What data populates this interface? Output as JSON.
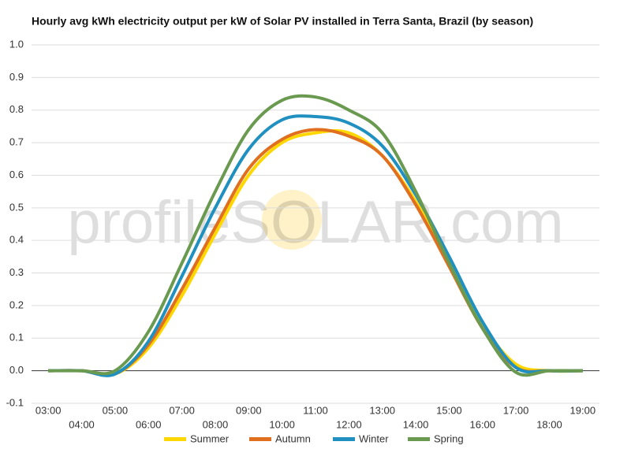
{
  "chart_data": {
    "type": "line",
    "title": "Hourly avg kWh electricity output per kW of Solar PV installed in Terra Santa, Brazil (by season)",
    "watermark": "profileSOLAR.com",
    "categories": [
      "03:00",
      "04:00",
      "05:00",
      "06:00",
      "07:00",
      "08:00",
      "09:00",
      "10:00",
      "11:00",
      "12:00",
      "13:00",
      "14:00",
      "15:00",
      "16:00",
      "17:00",
      "18:00",
      "19:00"
    ],
    "series": [
      {
        "name": "Summer",
        "color": "#ffd700",
        "values": [
          0,
          0,
          -0.01,
          0.07,
          0.23,
          0.42,
          0.6,
          0.7,
          0.73,
          0.73,
          0.66,
          0.52,
          0.33,
          0.14,
          0.02,
          0,
          0
        ]
      },
      {
        "name": "Autumn",
        "color": "#e07020",
        "values": [
          0,
          0,
          -0.01,
          0.08,
          0.25,
          0.44,
          0.62,
          0.71,
          0.74,
          0.72,
          0.66,
          0.51,
          0.32,
          0.13,
          0.01,
          0,
          0
        ]
      },
      {
        "name": "Winter",
        "color": "#2090c0",
        "values": [
          0,
          0,
          -0.01,
          0.09,
          0.29,
          0.5,
          0.68,
          0.77,
          0.78,
          0.76,
          0.69,
          0.54,
          0.35,
          0.15,
          0.01,
          0,
          0
        ]
      },
      {
        "name": "Spring",
        "color": "#6a9a50",
        "values": [
          0,
          0,
          0,
          0.12,
          0.33,
          0.55,
          0.74,
          0.83,
          0.84,
          0.8,
          0.73,
          0.55,
          0.33,
          0.13,
          -0.005,
          0,
          0
        ]
      }
    ],
    "ylim": [
      -0.1,
      1.0
    ],
    "yticks": [
      -0.1,
      {
        "value": 0,
        "label": "0.0"
      },
      0.1,
      0.2,
      0.3,
      0.4,
      0.5,
      0.6,
      0.7,
      0.8,
      0.9,
      {
        "value": 1,
        "label": "1.0"
      }
    ],
    "grid": true,
    "legend": "bottom"
  }
}
